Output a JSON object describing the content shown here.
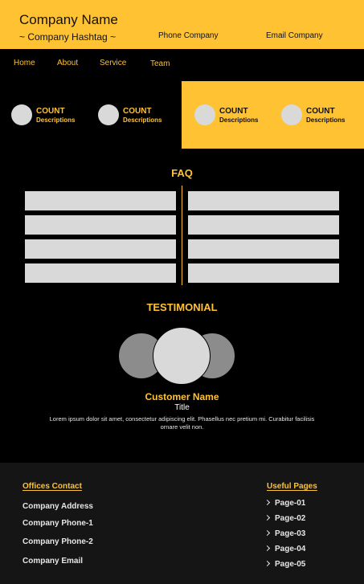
{
  "header": {
    "company_name": "Company Name",
    "hashtag": "~ Company Hashtag ~",
    "phone": "Phone Company",
    "email": "Email Company"
  },
  "nav": {
    "items": [
      "Home",
      "About",
      "Service",
      "Team"
    ]
  },
  "stats": [
    {
      "count": "COUNT",
      "desc": "Descriptions"
    },
    {
      "count": "COUNT",
      "desc": "Descriptions"
    },
    {
      "count": "COUNT",
      "desc": "Descriptions"
    },
    {
      "count": "COUNT",
      "desc": "Descriptions"
    }
  ],
  "faq": {
    "title": "FAQ"
  },
  "testimonial": {
    "title": "TESTIMONIAL",
    "customer_name": "Customer Name",
    "customer_title": "Title",
    "quote": "Lorem ipsum dolor sit amet, consectetur adipiscing elit. Phasellus nec pretium mi. Curabitur facilisis ornare velit non."
  },
  "footer": {
    "offices_heading": "Offices Contact",
    "address": "Company Address",
    "phone1": "Company Phone-1",
    "phone2": "Company Phone-2",
    "email": "Company Email",
    "pages_heading": "Useful Pages",
    "pages": [
      "Page-01",
      "Page-02",
      "Page-03",
      "Page-04",
      "Page-05"
    ]
  },
  "colors": {
    "accent": "#ffc233",
    "background": "#000000",
    "footer_background": "#151515",
    "placeholder": "#d9d9d9"
  }
}
